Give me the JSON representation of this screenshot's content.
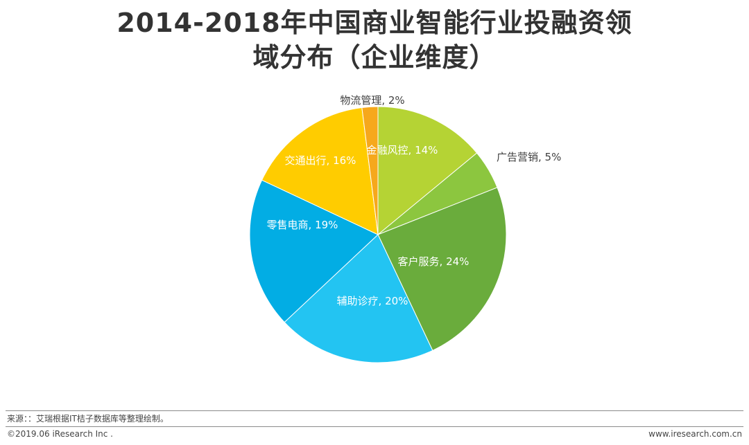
{
  "page": {
    "title_line1": "2014-2018年中国商业智能行业投融资领",
    "title_line2": "域分布（企业维度）",
    "source_note": "来源：：艾瑞根据IT桔子数据库等整理绘制。",
    "copyright": "©2019.06 iResearch Inc .",
    "website": "www.iresearch.com.cn"
  },
  "chart_data": {
    "type": "pie",
    "title": "2014-2018年中国商业智能行业投融资领域分布（企业维度）",
    "unit": "%",
    "slices": [
      {
        "label": "金融风控",
        "value": 14,
        "display": "金融风控, 14%",
        "color": "#b5d334",
        "label_color": "#ffffff"
      },
      {
        "label": "广告营销",
        "value": 5,
        "display": "广告营销, 5%",
        "color": "#8cc63f",
        "label_color": "#404040"
      },
      {
        "label": "客户服务",
        "value": 24,
        "display": "客户服务, 24%",
        "color": "#6aac3c",
        "label_color": "#ffffff"
      },
      {
        "label": "辅助诊疗",
        "value": 20,
        "display": "辅助诊疗, 20%",
        "color": "#23c4f2",
        "label_color": "#ffffff"
      },
      {
        "label": "零售电商",
        "value": 19,
        "display": "零售电商, 19%",
        "color": "#02ade4",
        "label_color": "#ffffff"
      },
      {
        "label": "交通出行",
        "value": 16,
        "display": "交通出行, 16%",
        "color": "#ffcc00",
        "label_color": "#ffffff"
      },
      {
        "label": "物流管理",
        "value": 2,
        "display": "物流管理, 2%",
        "color": "#f6a81c",
        "label_color": "#404040"
      }
    ]
  }
}
